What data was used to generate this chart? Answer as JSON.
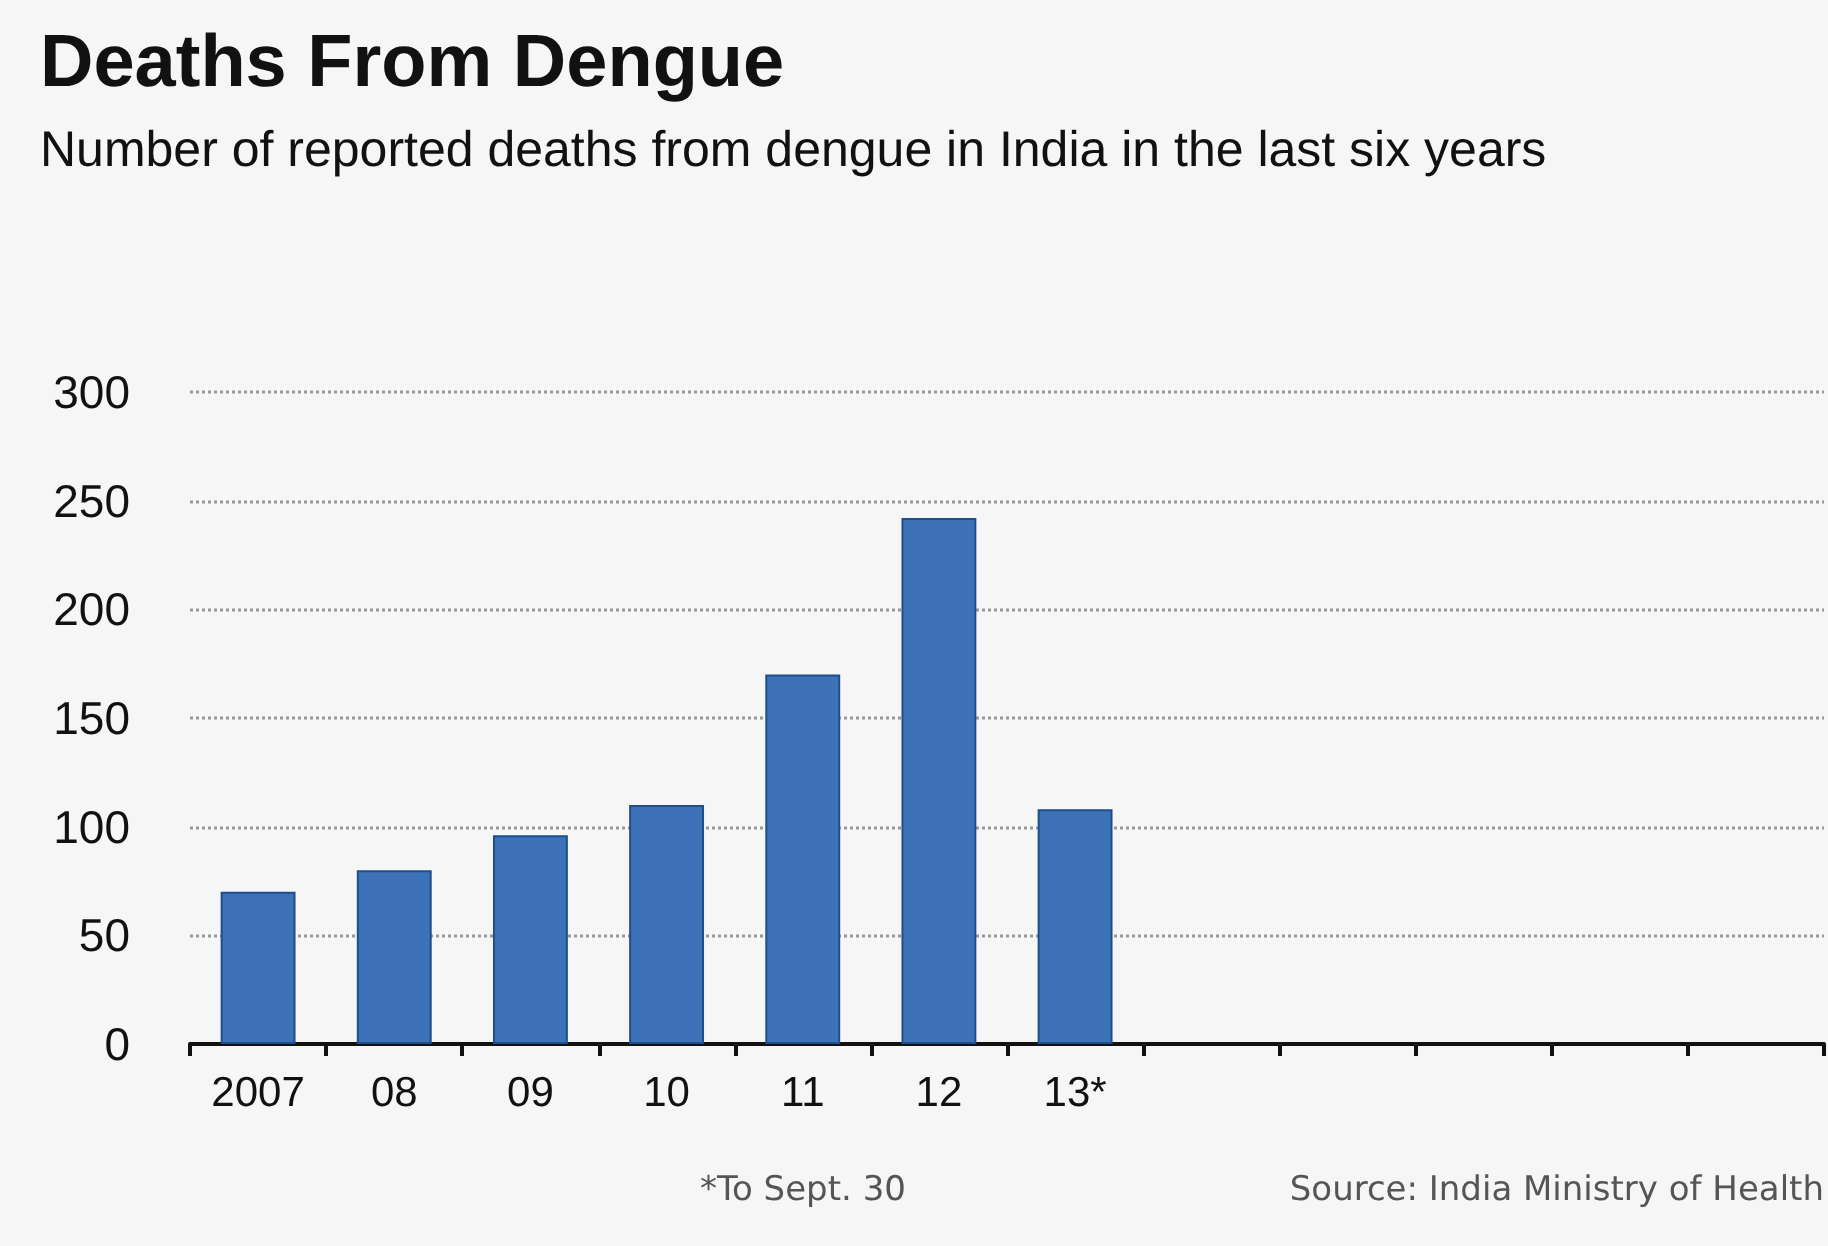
{
  "chart_data": {
    "type": "bar",
    "title": "Deaths From Dengue",
    "subtitle": "Number of reported deaths from dengue in India in the last six years",
    "categories": [
      "2007",
      "08",
      "09",
      "10",
      "11",
      "12",
      "13*",
      null,
      null,
      null,
      null,
      null
    ],
    "values": [
      70,
      80,
      96,
      110,
      170,
      242,
      108,
      null,
      null,
      null,
      null,
      null
    ],
    "color": "#3d72b8",
    "ylim": [
      0,
      300
    ],
    "yticks": [
      0,
      50,
      100,
      150,
      200,
      250,
      300
    ],
    "grid": "y",
    "annotations": [
      "*To Sept. 30",
      "Source: India Ministry of Health"
    ]
  }
}
